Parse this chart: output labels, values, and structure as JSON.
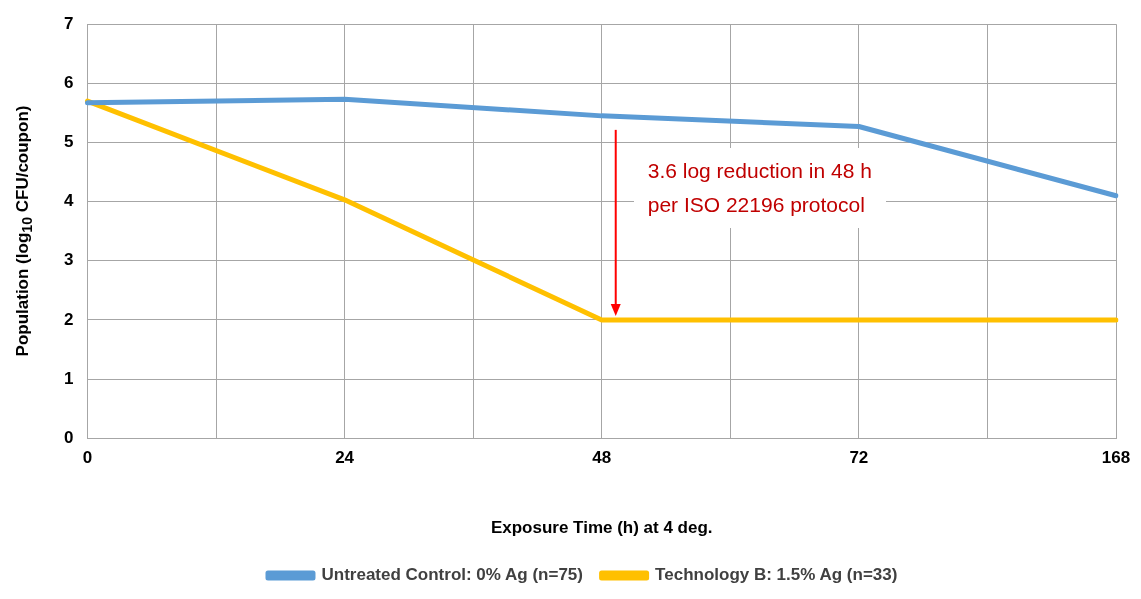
{
  "chart_data": {
    "type": "line",
    "categories": [
      "0",
      "24",
      "48",
      "72",
      "168"
    ],
    "series": [
      {
        "name": "Untreated Control: 0% Ag (n=75)",
        "color": "#5b9bd5",
        "values": [
          5.67,
          5.73,
          5.45,
          5.27,
          4.1
        ]
      },
      {
        "name": "Technology B: 1.5% Ag (n=33)",
        "color": "#ffc000",
        "values": [
          5.7,
          4.03,
          2.0,
          2.0,
          2.0
        ]
      }
    ],
    "xlabel": "Exposure Time (h) at 4 deg.",
    "ylabel": "Population (log$_{10}$ CFU/coupon)",
    "ylim": [
      0,
      7
    ],
    "yticks": [
      0,
      1,
      2,
      3,
      4,
      5,
      6,
      7
    ],
    "grid": true,
    "legend": "bottom",
    "marker": "none",
    "annotations": [
      "3.6 log reduction in 48 h\nper ISO 22196 protocol"
    ]
  }
}
